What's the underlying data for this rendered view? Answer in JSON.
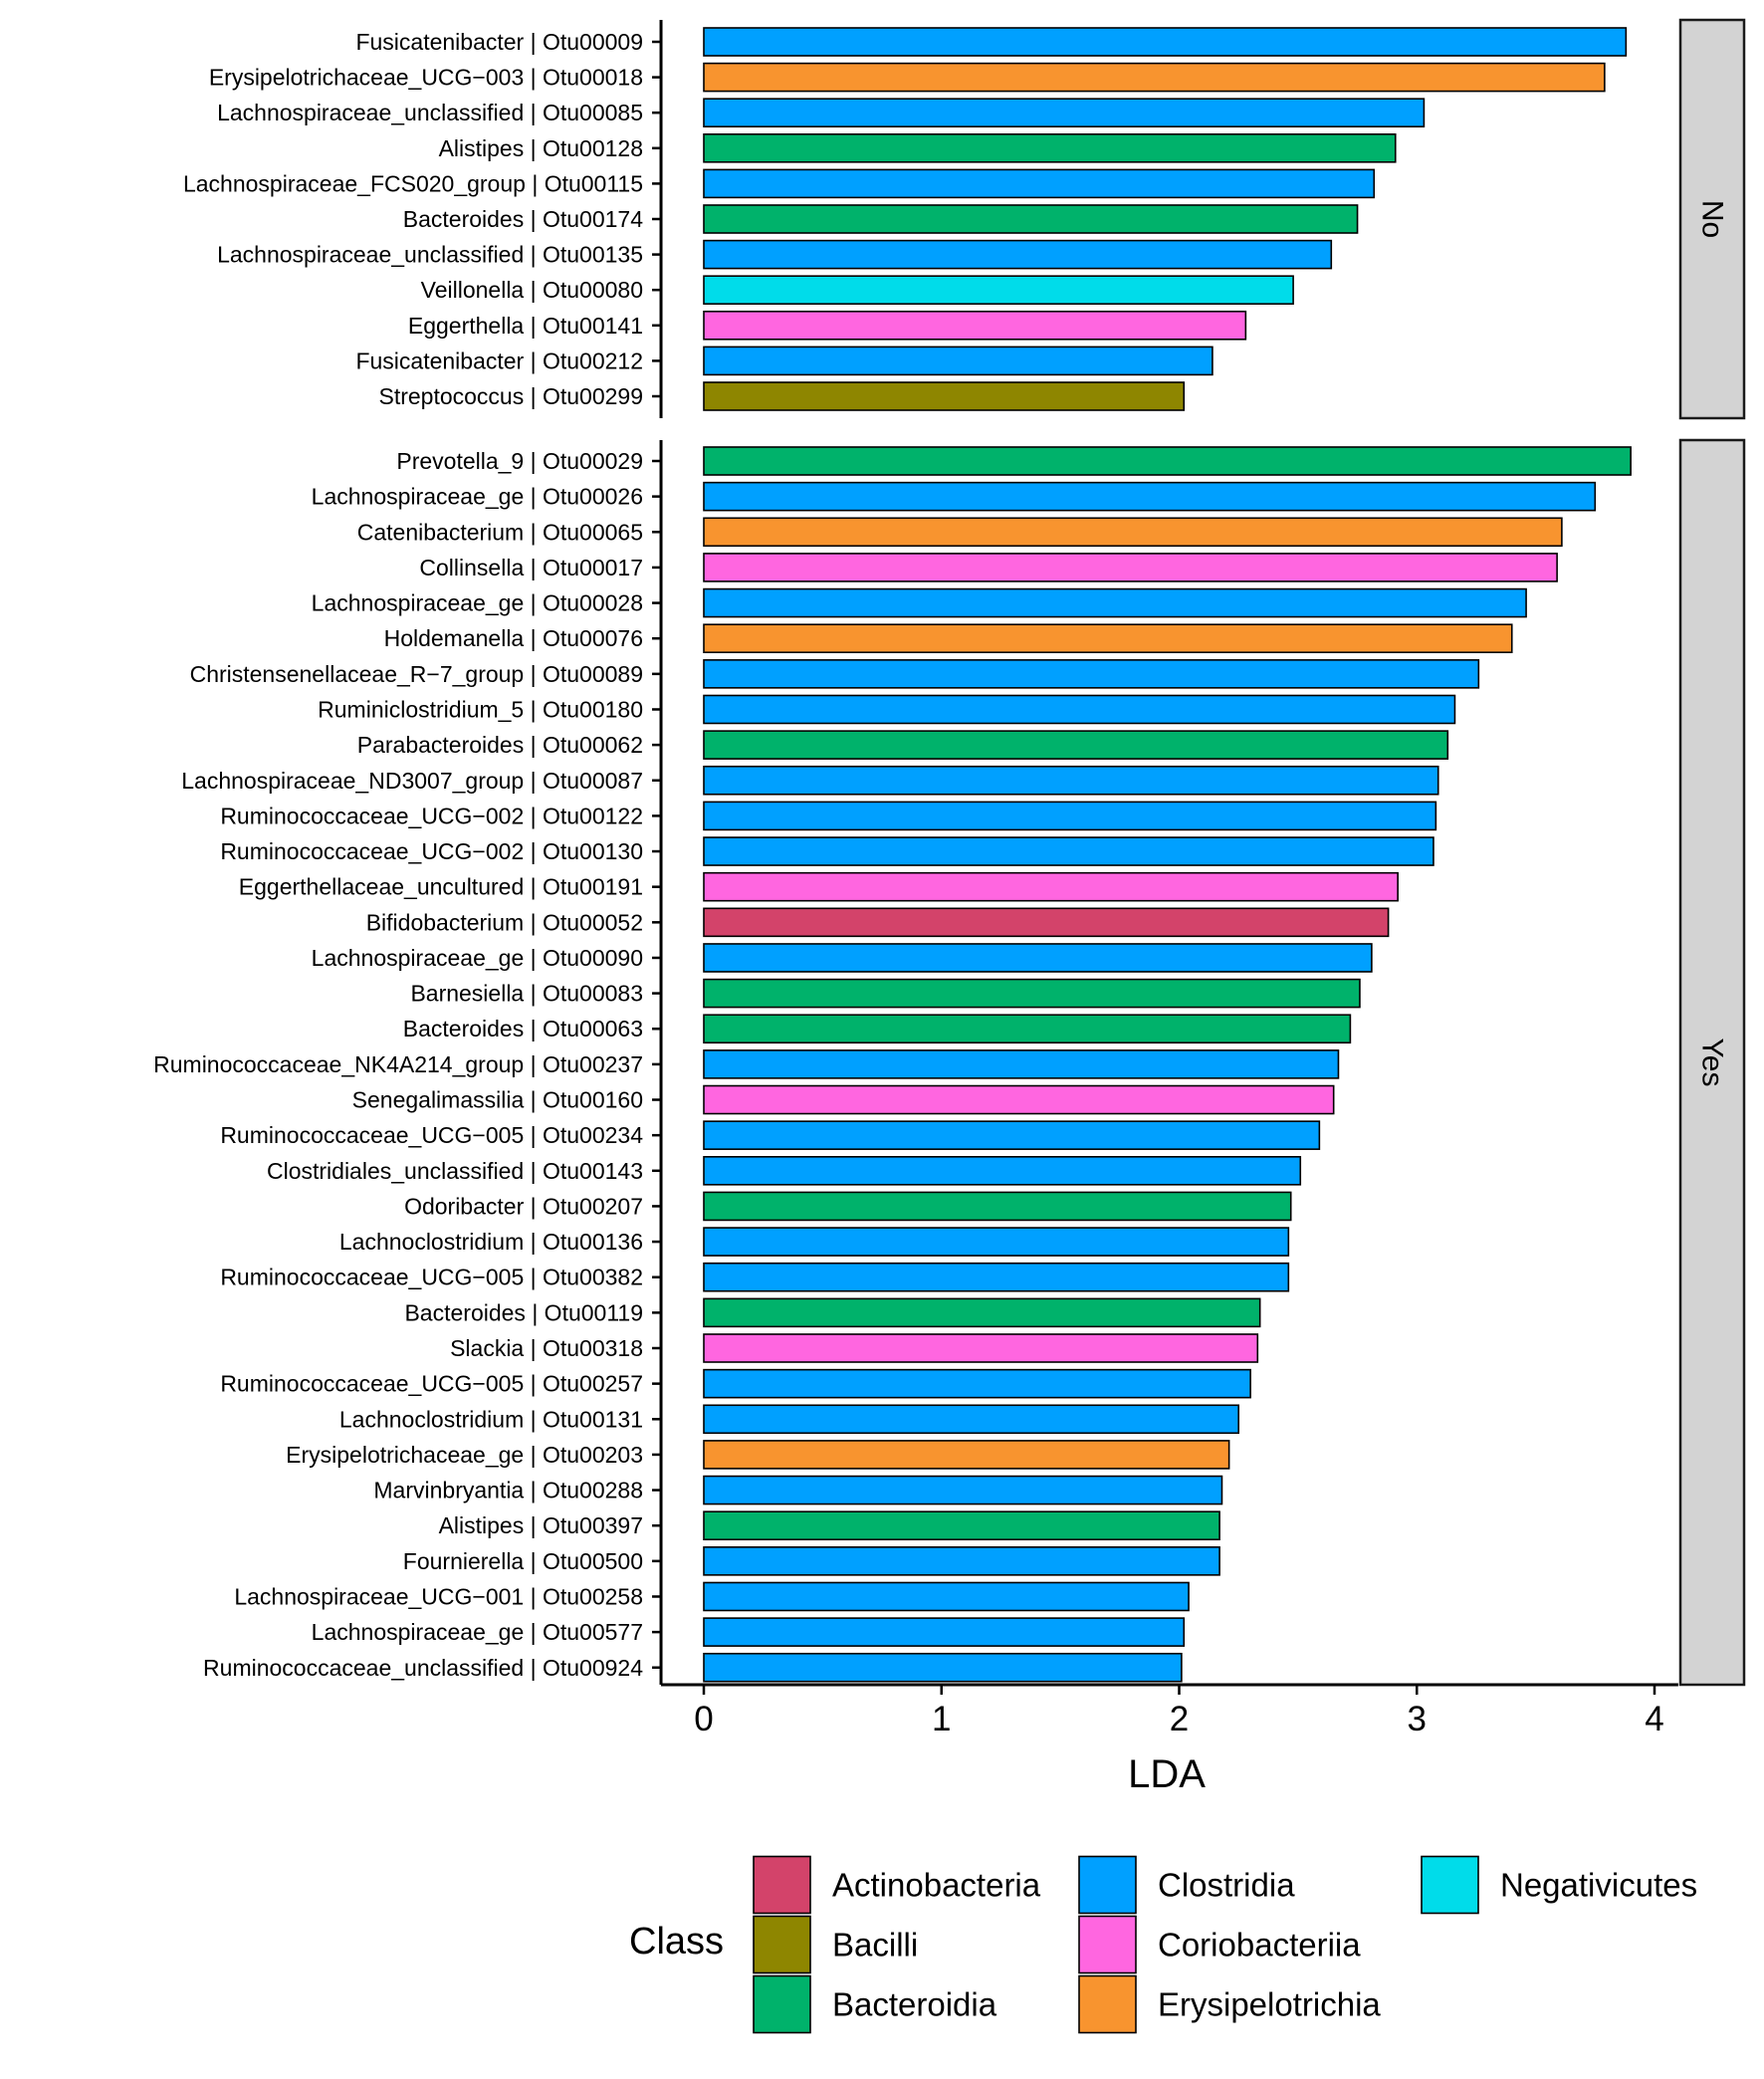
{
  "chart_data": {
    "type": "bar",
    "orientation": "horizontal",
    "xlabel": "LDA",
    "ylabel": "",
    "xlim": [
      -0.18,
      4.1
    ],
    "x_ticks": [
      0,
      1,
      2,
      3,
      4
    ],
    "grid": false,
    "legend": {
      "title": "Class",
      "placement": "bottom",
      "entries": [
        {
          "name": "Actinobacteria",
          "color": "#D3436A"
        },
        {
          "name": "Bacilli",
          "color": "#8E8600"
        },
        {
          "name": "Bacteroidia",
          "color": "#00B26B"
        },
        {
          "name": "Clostridia",
          "color": "#00A0FF"
        },
        {
          "name": "Coriobacteriia",
          "color": "#FF66E0"
        },
        {
          "name": "Erysipelotrichia",
          "color": "#F8942F"
        },
        {
          "name": "Negativicutes",
          "color": "#00DCEA"
        }
      ]
    },
    "panels": [
      {
        "facet": "No",
        "bars": [
          {
            "label": "Fusicatenibacter | Otu00009",
            "value": 3.88,
            "class": "Clostridia"
          },
          {
            "label": "Erysipelotrichaceae_UCG−003 | Otu00018",
            "value": 3.79,
            "class": "Erysipelotrichia"
          },
          {
            "label": "Lachnospiraceae_unclassified | Otu00085",
            "value": 3.03,
            "class": "Clostridia"
          },
          {
            "label": "Alistipes | Otu00128",
            "value": 2.91,
            "class": "Bacteroidia"
          },
          {
            "label": "Lachnospiraceae_FCS020_group | Otu00115",
            "value": 2.82,
            "class": "Clostridia"
          },
          {
            "label": "Bacteroides | Otu00174",
            "value": 2.75,
            "class": "Bacteroidia"
          },
          {
            "label": "Lachnospiraceae_unclassified | Otu00135",
            "value": 2.64,
            "class": "Clostridia"
          },
          {
            "label": "Veillonella | Otu00080",
            "value": 2.48,
            "class": "Negativicutes"
          },
          {
            "label": "Eggerthella | Otu00141",
            "value": 2.28,
            "class": "Coriobacteriia"
          },
          {
            "label": "Fusicatenibacter | Otu00212",
            "value": 2.14,
            "class": "Clostridia"
          },
          {
            "label": "Streptococcus | Otu00299",
            "value": 2.02,
            "class": "Bacilli"
          }
        ]
      },
      {
        "facet": "Yes",
        "bars": [
          {
            "label": "Prevotella_9 | Otu00029",
            "value": 3.9,
            "class": "Bacteroidia"
          },
          {
            "label": "Lachnospiraceae_ge | Otu00026",
            "value": 3.75,
            "class": "Clostridia"
          },
          {
            "label": "Catenibacterium | Otu00065",
            "value": 3.61,
            "class": "Erysipelotrichia"
          },
          {
            "label": "Collinsella | Otu00017",
            "value": 3.59,
            "class": "Coriobacteriia"
          },
          {
            "label": "Lachnospiraceae_ge | Otu00028",
            "value": 3.46,
            "class": "Clostridia"
          },
          {
            "label": "Holdemanella | Otu00076",
            "value": 3.4,
            "class": "Erysipelotrichia"
          },
          {
            "label": "Christensenellaceae_R−7_group | Otu00089",
            "value": 3.26,
            "class": "Clostridia"
          },
          {
            "label": "Ruminiclostridium_5 | Otu00180",
            "value": 3.16,
            "class": "Clostridia"
          },
          {
            "label": "Parabacteroides | Otu00062",
            "value": 3.13,
            "class": "Bacteroidia"
          },
          {
            "label": "Lachnospiraceae_ND3007_group | Otu00087",
            "value": 3.09,
            "class": "Clostridia"
          },
          {
            "label": "Ruminococcaceae_UCG−002 | Otu00122",
            "value": 3.08,
            "class": "Clostridia"
          },
          {
            "label": "Ruminococcaceae_UCG−002 | Otu00130",
            "value": 3.07,
            "class": "Clostridia"
          },
          {
            "label": "Eggerthellaceae_uncultured | Otu00191",
            "value": 2.92,
            "class": "Coriobacteriia"
          },
          {
            "label": "Bifidobacterium | Otu00052",
            "value": 2.88,
            "class": "Actinobacteria"
          },
          {
            "label": "Lachnospiraceae_ge | Otu00090",
            "value": 2.81,
            "class": "Clostridia"
          },
          {
            "label": "Barnesiella | Otu00083",
            "value": 2.76,
            "class": "Bacteroidia"
          },
          {
            "label": "Bacteroides | Otu00063",
            "value": 2.72,
            "class": "Bacteroidia"
          },
          {
            "label": "Ruminococcaceae_NK4A214_group | Otu00237",
            "value": 2.67,
            "class": "Clostridia"
          },
          {
            "label": "Senegalimassilia | Otu00160",
            "value": 2.65,
            "class": "Coriobacteriia"
          },
          {
            "label": "Ruminococcaceae_UCG−005 | Otu00234",
            "value": 2.59,
            "class": "Clostridia"
          },
          {
            "label": "Clostridiales_unclassified | Otu00143",
            "value": 2.51,
            "class": "Clostridia"
          },
          {
            "label": "Odoribacter | Otu00207",
            "value": 2.47,
            "class": "Bacteroidia"
          },
          {
            "label": "Lachnoclostridium | Otu00136",
            "value": 2.46,
            "class": "Clostridia"
          },
          {
            "label": "Ruminococcaceae_UCG−005 | Otu00382",
            "value": 2.46,
            "class": "Clostridia"
          },
          {
            "label": "Bacteroides | Otu00119",
            "value": 2.34,
            "class": "Bacteroidia"
          },
          {
            "label": "Slackia | Otu00318",
            "value": 2.33,
            "class": "Coriobacteriia"
          },
          {
            "label": "Ruminococcaceae_UCG−005 | Otu00257",
            "value": 2.3,
            "class": "Clostridia"
          },
          {
            "label": "Lachnoclostridium | Otu00131",
            "value": 2.25,
            "class": "Clostridia"
          },
          {
            "label": "Erysipelotrichaceae_ge | Otu00203",
            "value": 2.21,
            "class": "Erysipelotrichia"
          },
          {
            "label": "Marvinbryantia | Otu00288",
            "value": 2.18,
            "class": "Clostridia"
          },
          {
            "label": "Alistipes | Otu00397",
            "value": 2.17,
            "class": "Bacteroidia"
          },
          {
            "label": "Fournierella | Otu00500",
            "value": 2.17,
            "class": "Clostridia"
          },
          {
            "label": "Lachnospiraceae_UCG−001 | Otu00258",
            "value": 2.04,
            "class": "Clostridia"
          },
          {
            "label": "Lachnospiraceae_ge | Otu00577",
            "value": 2.02,
            "class": "Clostridia"
          },
          {
            "label": "Ruminococcaceae_unclassified | Otu00924",
            "value": 2.01,
            "class": "Clostridia"
          }
        ]
      }
    ]
  }
}
